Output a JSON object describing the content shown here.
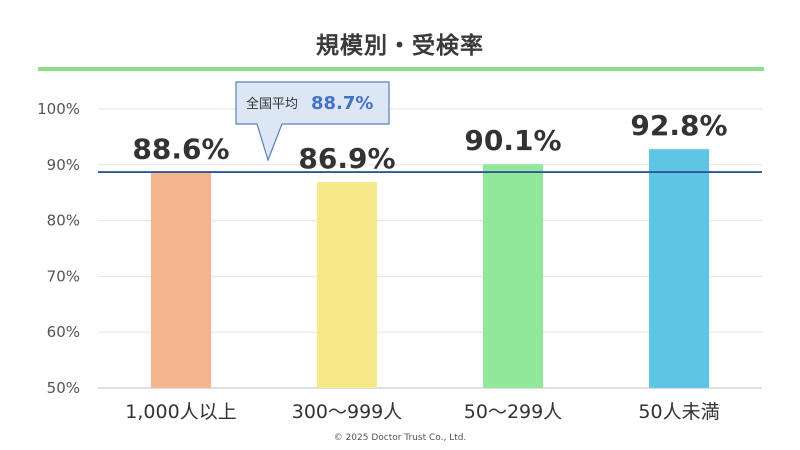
{
  "title": "規模別・受検率",
  "copyright": "©  2025 Doctor Trust Co., Ltd.",
  "average": {
    "label": "全国平均",
    "value_text": "88.7%",
    "value": 88.7,
    "color": "#2f5597"
  },
  "chart_data": {
    "type": "bar",
    "title": "規模別・受検率",
    "categories": [
      "1,000人以上",
      "300～999人",
      "50～299人",
      "50人未満"
    ],
    "values": [
      88.6,
      86.9,
      90.1,
      92.8
    ],
    "value_labels": [
      "88.6%",
      "86.9%",
      "90.1%",
      "92.8%"
    ],
    "colors": [
      "#f4b48e",
      "#f7e98a",
      "#92e89a",
      "#5ec6e4"
    ],
    "ylim": [
      50,
      100
    ],
    "yticks": [
      50,
      60,
      70,
      80,
      90,
      100
    ],
    "ytick_labels": [
      "50%",
      "60%",
      "70%",
      "80%",
      "90%",
      "100%"
    ],
    "xlabel": "",
    "ylabel": "",
    "grid": true,
    "reference_line": {
      "label": "全国平均",
      "value": 88.7
    }
  }
}
